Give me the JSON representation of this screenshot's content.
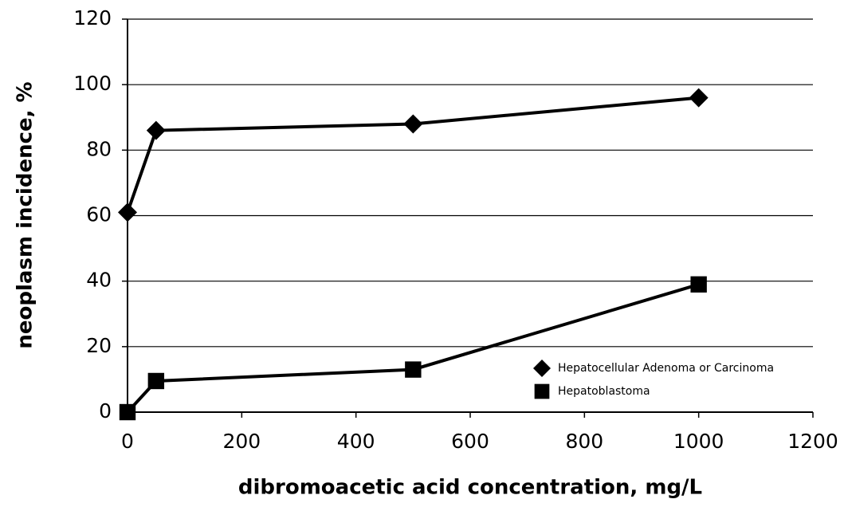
{
  "chart_data": {
    "type": "line",
    "xlabel": "dibromoacetic acid concentration, mg/L",
    "ylabel": "neoplasm incidence, %",
    "series": [
      {
        "name": "Hepatocellular Adenoma or Carcinoma",
        "color": "#000000",
        "marker": "diamond",
        "x": [
          0,
          50,
          500,
          1000
        ],
        "values": [
          61,
          86,
          88,
          96
        ]
      },
      {
        "name": "Hepatoblastoma",
        "color": "#000000",
        "marker": "square",
        "x": [
          0,
          50,
          500,
          1000
        ],
        "values": [
          0,
          9.5,
          13,
          39
        ]
      }
    ],
    "xlim": [
      0,
      1200
    ],
    "xticks": [
      0,
      200,
      400,
      600,
      800,
      1000,
      1200
    ],
    "ylim": [
      0,
      120
    ],
    "yticks": [
      0,
      20,
      40,
      60,
      80,
      100,
      120
    ],
    "grid": true,
    "legend": "lower right"
  }
}
